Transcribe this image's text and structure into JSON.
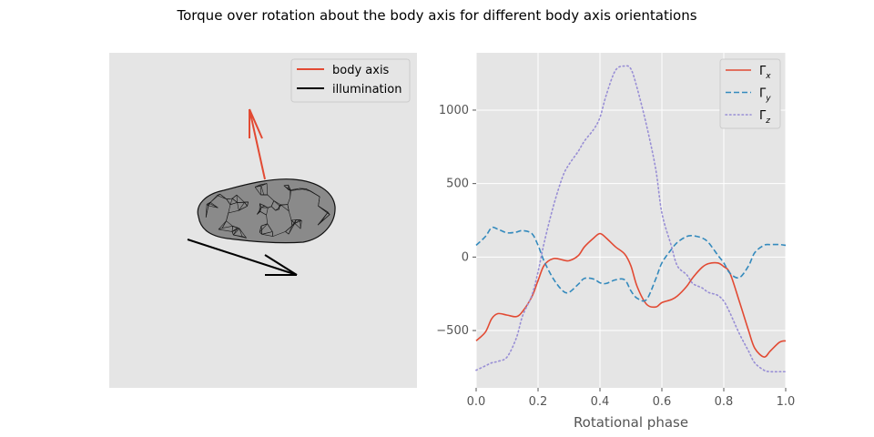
{
  "figure": {
    "title": "Torque over rotation about the body axis for different body axis orientations"
  },
  "left_panel": {
    "legend": {
      "items": [
        {
          "label": "body axis",
          "color": "#E24A33"
        },
        {
          "label": "illumination",
          "color": "#000000"
        }
      ]
    },
    "background": "#E5E5E5"
  },
  "chart_data": {
    "type": "line",
    "title": "",
    "xlabel": "Rotational phase",
    "ylabel": "",
    "xlim": [
      0,
      1
    ],
    "ylim": [
      -890,
      1390
    ],
    "xticks": [
      0.0,
      0.2,
      0.4,
      0.6,
      0.8,
      1.0
    ],
    "xtick_labels": [
      "0.0",
      "0.2",
      "0.4",
      "0.6",
      "0.8",
      "1.0"
    ],
    "yticks": [
      -500,
      0,
      500,
      1000
    ],
    "ytick_labels": [
      "−500",
      "0",
      "500",
      "1000"
    ],
    "grid": true,
    "legend_position": "top-right",
    "background": "#E5E5E5",
    "series": [
      {
        "name": "Γx",
        "legend_base": "Γ",
        "legend_sub": "x",
        "color": "#E24A33",
        "dash": "solid",
        "x": [
          0.0,
          0.03,
          0.05,
          0.07,
          0.1,
          0.13,
          0.15,
          0.18,
          0.2,
          0.22,
          0.25,
          0.28,
          0.3,
          0.33,
          0.35,
          0.38,
          0.4,
          0.42,
          0.45,
          0.48,
          0.5,
          0.52,
          0.55,
          0.58,
          0.6,
          0.63,
          0.65,
          0.68,
          0.7,
          0.73,
          0.75,
          0.78,
          0.8,
          0.82,
          0.85,
          0.88,
          0.9,
          0.93,
          0.95,
          0.98,
          1.0
        ],
        "y": [
          -570,
          -510,
          -420,
          -385,
          -395,
          -405,
          -370,
          -270,
          -160,
          -55,
          -10,
          -20,
          -25,
          10,
          70,
          130,
          160,
          130,
          70,
          20,
          -60,
          -200,
          -320,
          -340,
          -310,
          -290,
          -265,
          -200,
          -140,
          -70,
          -45,
          -40,
          -65,
          -110,
          -300,
          -500,
          -620,
          -680,
          -640,
          -580,
          -570
        ]
      },
      {
        "name": "Γy",
        "legend_base": "Γ",
        "legend_sub": "y",
        "color": "#348ABD",
        "dash": "dashed",
        "x": [
          0.0,
          0.03,
          0.05,
          0.07,
          0.1,
          0.13,
          0.15,
          0.18,
          0.2,
          0.22,
          0.25,
          0.28,
          0.3,
          0.33,
          0.35,
          0.38,
          0.4,
          0.42,
          0.45,
          0.48,
          0.5,
          0.52,
          0.55,
          0.58,
          0.6,
          0.63,
          0.65,
          0.68,
          0.7,
          0.73,
          0.75,
          0.78,
          0.8,
          0.82,
          0.85,
          0.88,
          0.9,
          0.93,
          0.95,
          0.98,
          1.0
        ],
        "y": [
          80,
          140,
          200,
          190,
          165,
          170,
          180,
          160,
          80,
          -30,
          -150,
          -230,
          -240,
          -185,
          -145,
          -150,
          -175,
          -180,
          -155,
          -155,
          -230,
          -280,
          -290,
          -150,
          -40,
          50,
          100,
          140,
          145,
          130,
          100,
          15,
          -40,
          -110,
          -140,
          -60,
          30,
          80,
          85,
          85,
          80
        ]
      },
      {
        "name": "Γz",
        "legend_base": "Γ",
        "legend_sub": "z",
        "color": "#988ED5",
        "dash": "dotted",
        "x": [
          0.0,
          0.03,
          0.05,
          0.07,
          0.1,
          0.13,
          0.15,
          0.18,
          0.2,
          0.22,
          0.25,
          0.28,
          0.3,
          0.33,
          0.35,
          0.38,
          0.4,
          0.42,
          0.45,
          0.48,
          0.5,
          0.52,
          0.55,
          0.58,
          0.6,
          0.63,
          0.65,
          0.68,
          0.7,
          0.73,
          0.75,
          0.78,
          0.8,
          0.82,
          0.85,
          0.88,
          0.9,
          0.93,
          0.95,
          0.98,
          1.0
        ],
        "y": [
          -770,
          -740,
          -720,
          -710,
          -680,
          -550,
          -400,
          -260,
          -100,
          100,
          350,
          550,
          630,
          720,
          790,
          870,
          950,
          1100,
          1270,
          1300,
          1280,
          1150,
          900,
          600,
          300,
          80,
          -60,
          -120,
          -180,
          -210,
          -240,
          -260,
          -300,
          -380,
          -520,
          -640,
          -720,
          -770,
          -780,
          -780,
          -780
        ]
      }
    ]
  }
}
